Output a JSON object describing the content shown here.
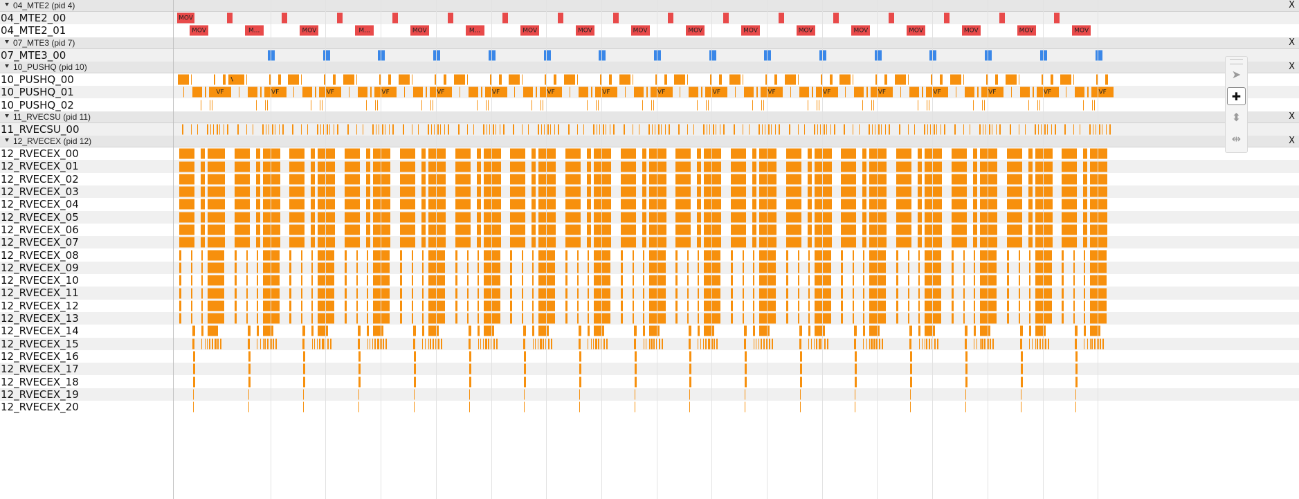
{
  "colors": {
    "mte2_slice": "#e84a4a",
    "mte3_slice": "#3a87e8",
    "vector_slice": "#f7900d",
    "group_header_bg": "#e6e6e6",
    "row_stripe": "#f0f0f0"
  },
  "groups": [
    {
      "title": "04_MTE2 (pid 4)",
      "close_label": "X",
      "color": "#e84a4a",
      "rows": [
        {
          "label": "04_MTE2_00",
          "pattern": "mte2_a"
        },
        {
          "label": "04_MTE2_01",
          "pattern": "mte2_b"
        }
      ]
    },
    {
      "title": "07_MTE3 (pid 7)",
      "close_label": "X",
      "color": "#3a87e8",
      "rows": [
        {
          "label": "07_MTE3_00",
          "pattern": "mte3"
        }
      ]
    },
    {
      "title": "10_PUSHQ (pid 10)",
      "close_label": "X",
      "color": "#f7900d",
      "rows": [
        {
          "label": "10_PUSHQ_00",
          "pattern": "pushq0"
        },
        {
          "label": "10_PUSHQ_01",
          "pattern": "pushq1"
        },
        {
          "label": "10_PUSHQ_02",
          "pattern": "pushq2"
        }
      ]
    },
    {
      "title": "11_RVECSU (pid 11)",
      "close_label": "X",
      "color": "#f7900d",
      "rows": [
        {
          "label": "11_RVECSU_00",
          "pattern": "su"
        }
      ]
    },
    {
      "title": "12_RVECEX (pid 12)",
      "close_label": "X",
      "color": "#f7900d",
      "rows": [
        {
          "label": "12_RVECEX_00",
          "pattern": "ex_full"
        },
        {
          "label": "12_RVECEX_01",
          "pattern": "ex_full"
        },
        {
          "label": "12_RVECEX_02",
          "pattern": "ex_full"
        },
        {
          "label": "12_RVECEX_03",
          "pattern": "ex_full"
        },
        {
          "label": "12_RVECEX_04",
          "pattern": "ex_full"
        },
        {
          "label": "12_RVECEX_05",
          "pattern": "ex_full"
        },
        {
          "label": "12_RVECEX_06",
          "pattern": "ex_full"
        },
        {
          "label": "12_RVECEX_07",
          "pattern": "ex_full"
        },
        {
          "label": "12_RVECEX_08",
          "pattern": "ex_mid"
        },
        {
          "label": "12_RVECEX_09",
          "pattern": "ex_mid"
        },
        {
          "label": "12_RVECEX_10",
          "pattern": "ex_mid"
        },
        {
          "label": "12_RVECEX_11",
          "pattern": "ex_mid"
        },
        {
          "label": "12_RVECEX_12",
          "pattern": "ex_mid"
        },
        {
          "label": "12_RVECEX_13",
          "pattern": "ex_mid"
        },
        {
          "label": "12_RVECEX_14",
          "pattern": "ex_light"
        },
        {
          "label": "12_RVECEX_15",
          "pattern": "ex_sparse"
        },
        {
          "label": "12_RVECEX_16",
          "pattern": "ex_thin"
        },
        {
          "label": "12_RVECEX_17",
          "pattern": "ex_thin"
        },
        {
          "label": "12_RVECEX_18",
          "pattern": "ex_thin"
        },
        {
          "label": "12_RVECEX_19",
          "pattern": "ex_hair"
        },
        {
          "label": "12_RVECEX_20",
          "pattern": "ex_hair"
        }
      ]
    }
  ],
  "slice_labels": {
    "mov": "MOV",
    "mov_truncated": "M...",
    "vf": "VF"
  },
  "toolbox": {
    "tools": [
      {
        "name": "select-icon",
        "glyph": "➤",
        "active": false
      },
      {
        "name": "pan-icon",
        "glyph": "✚",
        "active": true
      },
      {
        "name": "zoom-icon",
        "glyph": "⬍",
        "active": false
      },
      {
        "name": "timing-icon",
        "glyph": "⇹",
        "active": false
      }
    ]
  }
}
